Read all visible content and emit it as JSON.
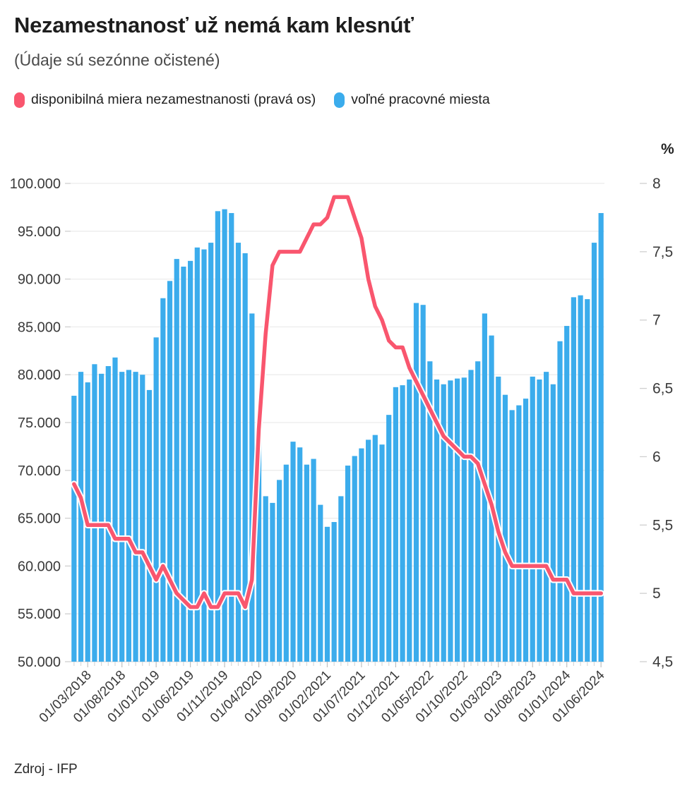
{
  "header": {
    "title": "Nezamestnanosť už nemá kam klesnúť",
    "subtitle": "(Údaje sú sezónne očistené)"
  },
  "legend": {
    "items": [
      {
        "label": "disponibilná miera nezamestnanosti (pravá os)",
        "color": "#f9566e"
      },
      {
        "label": "voľné pracovné miesta",
        "color": "#3bacec"
      }
    ]
  },
  "source": {
    "label": "Zdroj - IFP"
  },
  "chart_data": {
    "type": "combo",
    "grid": true,
    "legend_position": "top-left",
    "x": [
      "01/01/2018",
      "01/02/2018",
      "01/03/2018",
      "01/04/2018",
      "01/05/2018",
      "01/06/2018",
      "01/07/2018",
      "01/08/2018",
      "01/09/2018",
      "01/10/2018",
      "01/11/2018",
      "01/12/2018",
      "01/01/2019",
      "01/02/2019",
      "01/03/2019",
      "01/04/2019",
      "01/05/2019",
      "01/06/2019",
      "01/07/2019",
      "01/08/2019",
      "01/09/2019",
      "01/10/2019",
      "01/11/2019",
      "01/12/2019",
      "01/01/2020",
      "01/02/2020",
      "01/03/2020",
      "01/04/2020",
      "01/05/2020",
      "01/06/2020",
      "01/07/2020",
      "01/08/2020",
      "01/09/2020",
      "01/10/2020",
      "01/11/2020",
      "01/12/2020",
      "01/01/2021",
      "01/02/2021",
      "01/03/2021",
      "01/04/2021",
      "01/05/2021",
      "01/06/2021",
      "01/07/2021",
      "01/08/2021",
      "01/09/2021",
      "01/10/2021",
      "01/11/2021",
      "01/12/2021",
      "01/01/2022",
      "01/02/2022",
      "01/03/2022",
      "01/04/2022",
      "01/05/2022",
      "01/06/2022",
      "01/07/2022",
      "01/08/2022",
      "01/09/2022",
      "01/10/2022",
      "01/11/2022",
      "01/12/2022",
      "01/01/2023",
      "01/02/2023",
      "01/03/2023",
      "01/04/2023",
      "01/05/2023",
      "01/06/2023",
      "01/07/2023",
      "01/08/2023",
      "01/09/2023",
      "01/10/2023",
      "01/11/2023",
      "01/12/2023",
      "01/01/2024",
      "01/02/2024",
      "01/03/2024",
      "01/04/2024",
      "01/05/2024",
      "01/06/2024"
    ],
    "x_tick_labels": [
      "01/03/2018",
      "01/08/2018",
      "01/01/2019",
      "01/06/2019",
      "01/11/2019",
      "01/04/2020",
      "01/09/2020",
      "01/02/2021",
      "01/07/2021",
      "01/12/2021",
      "01/05/2022",
      "01/10/2022",
      "01/03/2023",
      "01/08/2023",
      "01/01/2024",
      "01/06/2024"
    ],
    "x_tick_start_index": 2,
    "x_tick_every": 5,
    "series": [
      {
        "name": "voľné pracovné miesta",
        "type": "bar",
        "axis": "left",
        "color": "#3bacec",
        "values": [
          77800,
          80300,
          79200,
          81100,
          80100,
          80900,
          81800,
          80300,
          80500,
          80300,
          80000,
          78400,
          83900,
          88000,
          89800,
          92100,
          91300,
          91900,
          93300,
          93100,
          93800,
          97100,
          97300,
          96900,
          93800,
          92700,
          86400,
          74200,
          67300,
          66600,
          69000,
          70600,
          73000,
          72400,
          70600,
          71200,
          66400,
          64100,
          64600,
          67300,
          70500,
          71500,
          72300,
          73200,
          73700,
          72700,
          75800,
          78700,
          78900,
          79500,
          87500,
          87300,
          81400,
          79500,
          79000,
          79400,
          79600,
          79700,
          80500,
          81400,
          86400,
          84100,
          79800,
          77900,
          76300,
          76800,
          77500,
          79800,
          79500,
          80300,
          79000,
          83500,
          85100,
          88100,
          88300,
          87900,
          93800,
          96900
        ]
      },
      {
        "name": "disponibilná miera nezamestnanosti (pravá os)",
        "type": "line",
        "axis": "right",
        "color": "#f9566e",
        "values": [
          5.8,
          5.7,
          5.5,
          5.5,
          5.5,
          5.5,
          5.4,
          5.4,
          5.4,
          5.3,
          5.3,
          5.2,
          5.1,
          5.2,
          5.1,
          5.0,
          4.95,
          4.9,
          4.9,
          5.0,
          4.9,
          4.9,
          5.0,
          5.0,
          5.0,
          4.9,
          5.1,
          6.2,
          6.9,
          7.4,
          7.5,
          7.5,
          7.5,
          7.5,
          7.6,
          7.7,
          7.7,
          7.75,
          7.9,
          7.9,
          7.9,
          7.75,
          7.6,
          7.3,
          7.1,
          7.0,
          6.85,
          6.8,
          6.8,
          6.65,
          6.55,
          6.45,
          6.35,
          6.25,
          6.15,
          6.1,
          6.05,
          6.0,
          6.0,
          5.95,
          5.8,
          5.65,
          5.45,
          5.3,
          5.2,
          5.2,
          5.2,
          5.2,
          5.2,
          5.2,
          5.1,
          5.1,
          5.1,
          5.0,
          5.0,
          5.0,
          5.0,
          5.0
        ]
      }
    ],
    "y_left": {
      "min": 50000,
      "max": 100000,
      "tick_step": 5000,
      "tick_labels": [
        "100.000",
        "95.000",
        "90.000",
        "85.000",
        "80.000",
        "75.000",
        "70.000",
        "65.000",
        "60.000",
        "55.000",
        "50.000"
      ]
    },
    "y_right": {
      "min": 4.5,
      "max": 8,
      "tick_step": 0.5,
      "unit": "%",
      "tick_labels": [
        "8",
        "7,5",
        "7",
        "6,5",
        "6",
        "5,5",
        "5",
        "4,5"
      ]
    }
  }
}
